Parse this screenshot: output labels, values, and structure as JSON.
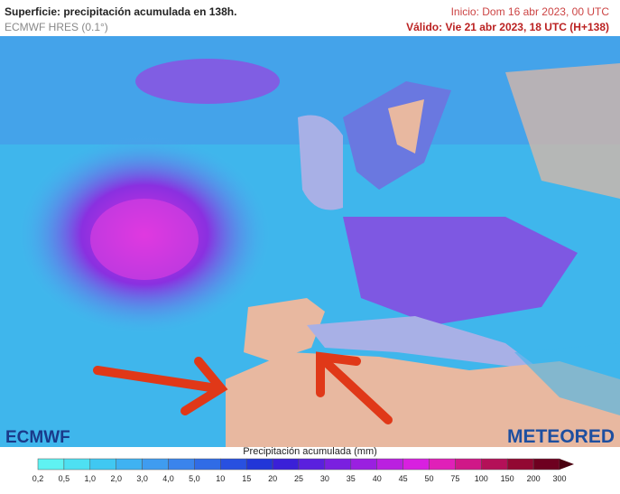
{
  "header": {
    "title": "Superficie: precipitación acumulada en 138h.",
    "model": "ECMWF HRES (0.1°)",
    "init": "Inicio: Dom 16 abr 2023, 00 UTC",
    "valid": "Válido: Vie 21 abr 2023, 18 UTC (H+138)"
  },
  "logos": {
    "left": "ECMWF",
    "right": "METEORED"
  },
  "legend": {
    "title": "Precipitación acumulada (mm)",
    "ticks": [
      "0,2",
      "0,5",
      "1,0",
      "2,0",
      "3,0",
      "4,0",
      "5,0",
      "10",
      "15",
      "20",
      "25",
      "30",
      "35",
      "40",
      "45",
      "50",
      "75",
      "100",
      "150",
      "200",
      "300"
    ],
    "colors": [
      "#5ff2f2",
      "#4ee0f2",
      "#40c8f2",
      "#3fb2f2",
      "#3f9cf0",
      "#3a84ec",
      "#306ce6",
      "#2850e0",
      "#2236d8",
      "#3a20d8",
      "#5a20de",
      "#7a20e0",
      "#9a20e0",
      "#ba20e0",
      "#d820e0",
      "#e020b8",
      "#d01888",
      "#b41058",
      "#920832",
      "#6e0020"
    ],
    "arrow_color": "#4a0010"
  }
}
